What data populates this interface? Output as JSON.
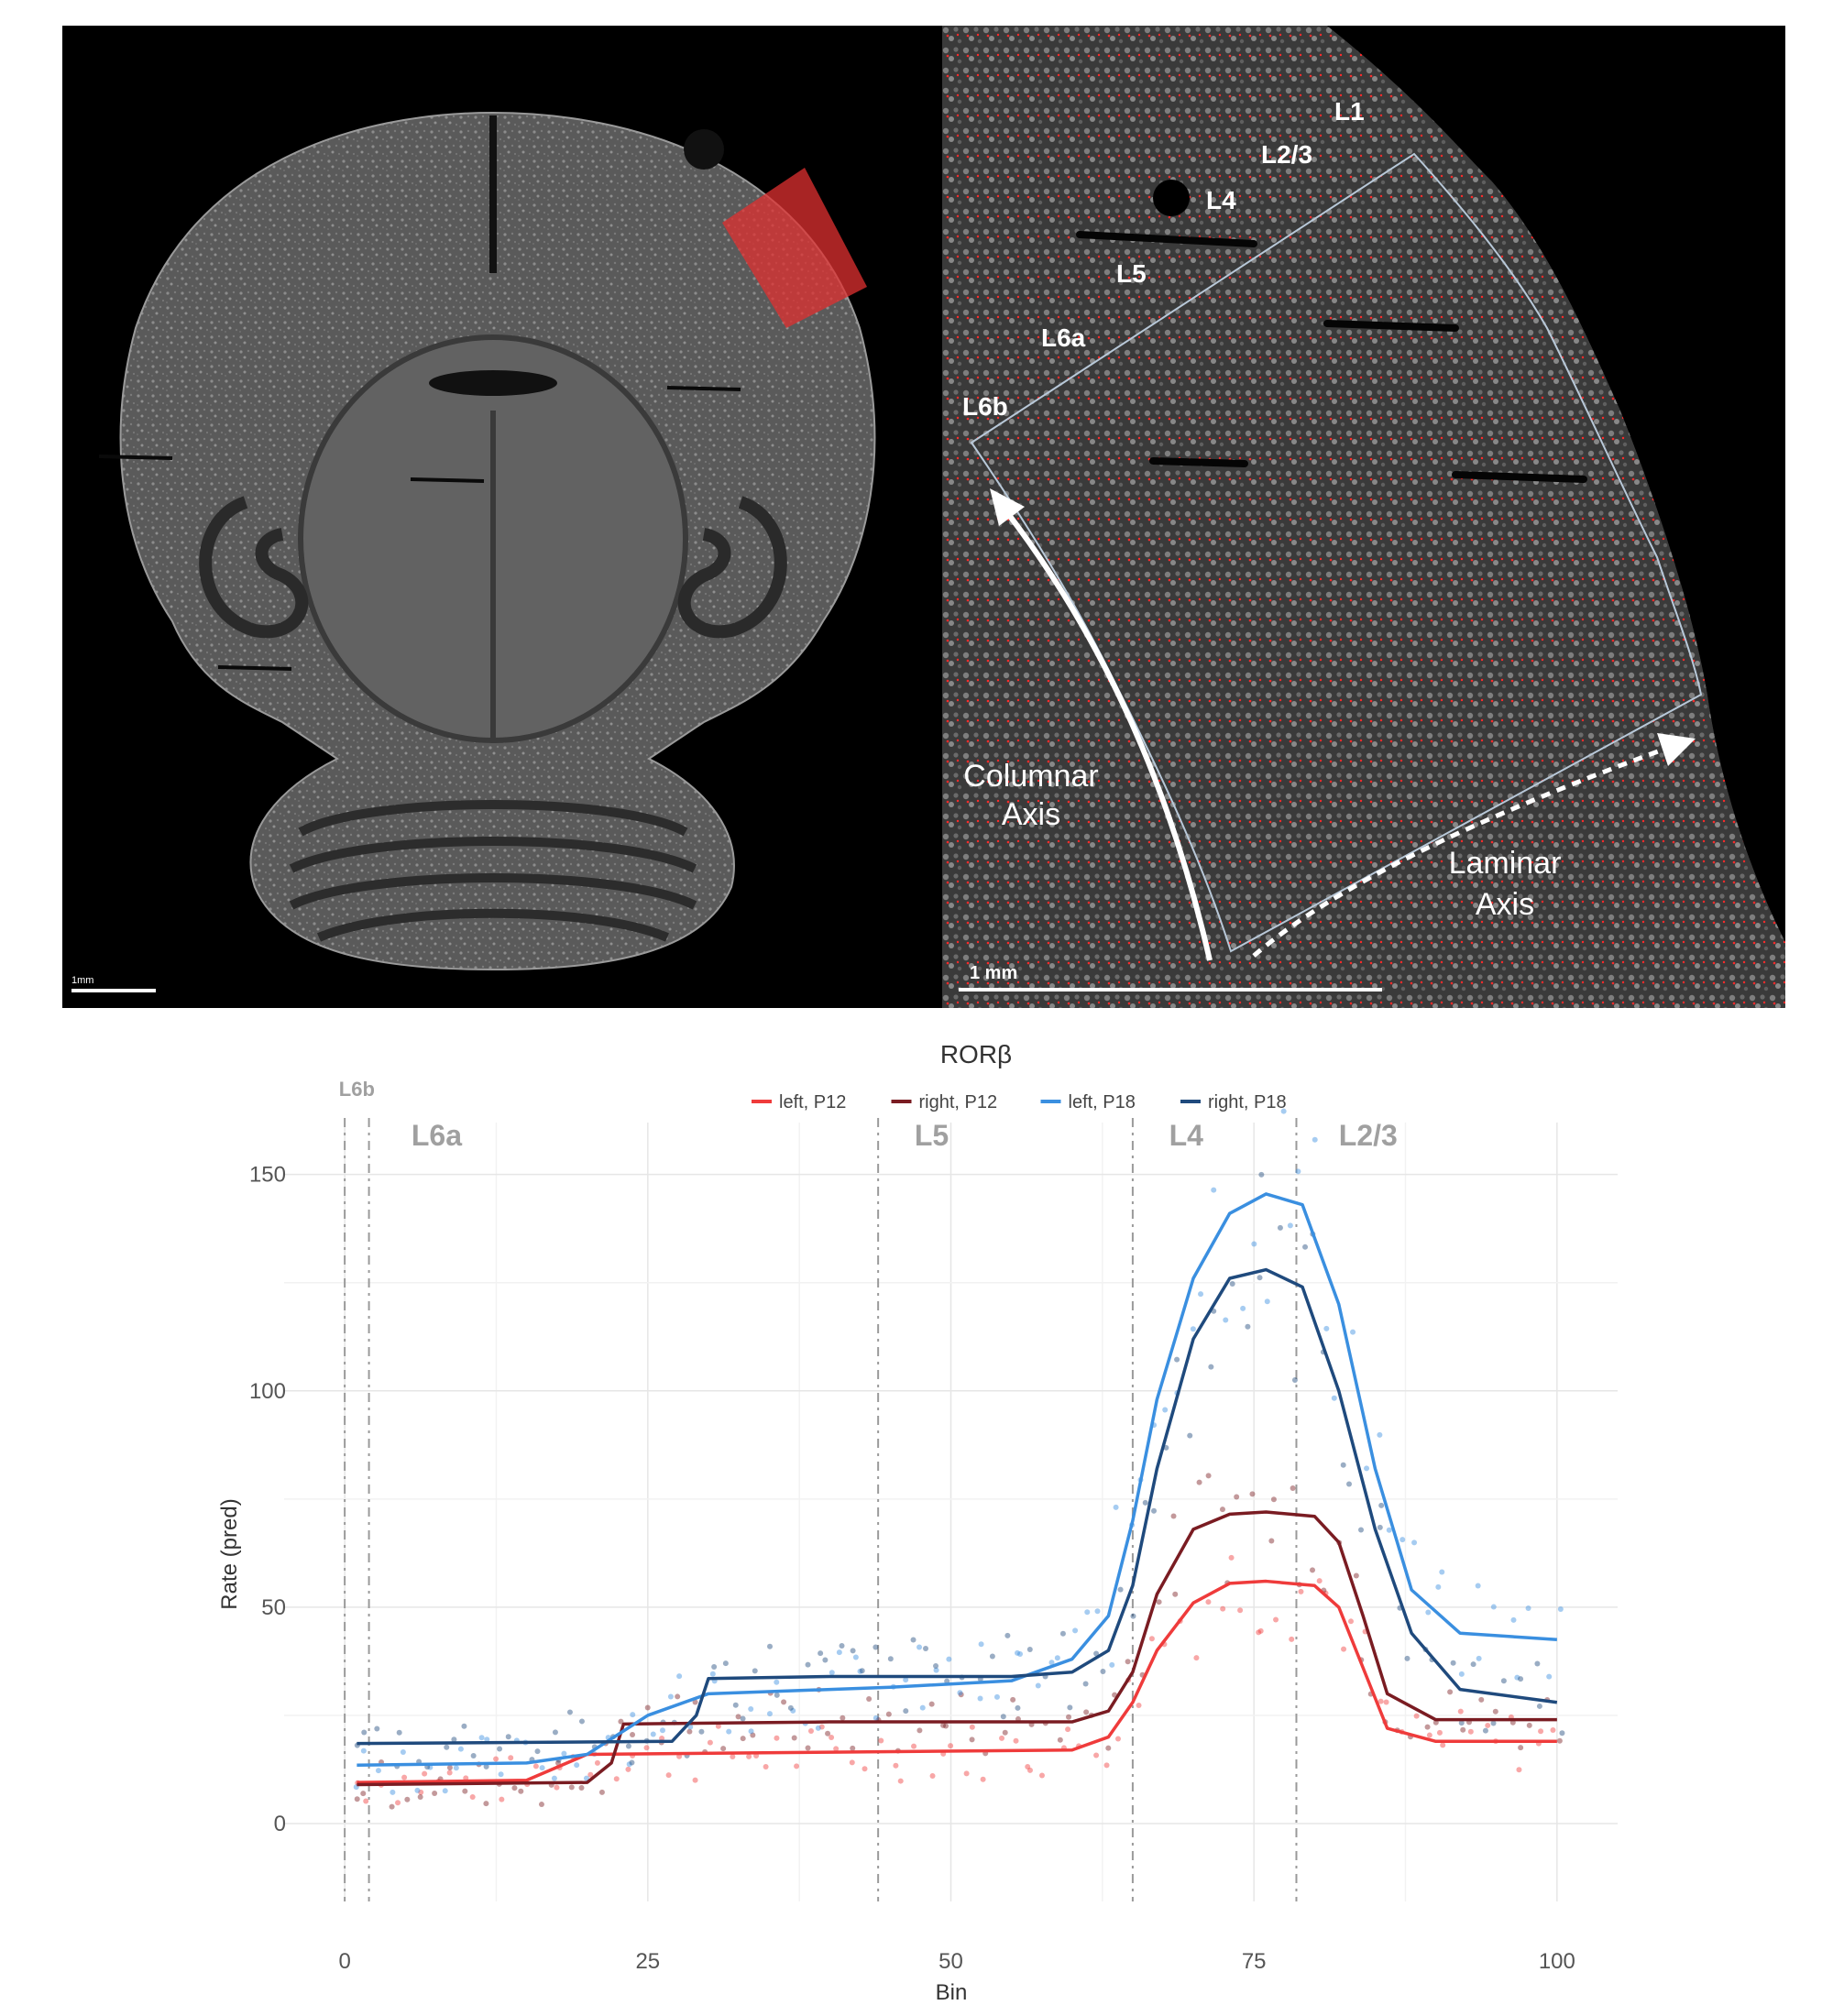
{
  "microscopy": {
    "left_scale_label": "1mm",
    "right_scale_label": "1 mm",
    "layer_labels": [
      "L1",
      "L2/3",
      "L4",
      "L5",
      "L6a",
      "L6b"
    ],
    "columnar_axis_label": [
      "Columnar",
      "Axis"
    ],
    "laminar_axis_label": [
      "Laminar",
      "Axis"
    ],
    "roi_color": "#e03030",
    "expression_dot_color": "#ff2a2a"
  },
  "chart_data": {
    "type": "line",
    "title": "RORβ",
    "xlabel": "Bin",
    "ylabel": "Rate (pred)",
    "xlim": [
      -5,
      105
    ],
    "ylim": [
      -18,
      162
    ],
    "x_ticks": [
      0,
      25,
      50,
      75,
      100
    ],
    "y_ticks": [
      0,
      50,
      100,
      150
    ],
    "grid": true,
    "legend_position": "top",
    "layer_boundaries": [
      {
        "x": 0,
        "label": "L6b",
        "label_x": 1
      },
      {
        "x": 2,
        "label": "L6a",
        "label_x": 5.5
      },
      {
        "x": 44,
        "label": "L5",
        "label_x": 47
      },
      {
        "x": 65,
        "label": "L4",
        "label_x": 68
      },
      {
        "x": 78.5,
        "label": "L2/3",
        "label_x": 82
      }
    ],
    "series": [
      {
        "name": "left, P12",
        "color": "#ef3b3b",
        "x": [
          1,
          15,
          20,
          40,
          60,
          63,
          65,
          67,
          70,
          73,
          76,
          80,
          82,
          84,
          86,
          90,
          100
        ],
        "y": [
          9.5,
          10,
          16,
          16.5,
          17,
          20,
          28,
          40,
          51,
          55.5,
          56,
          55,
          50,
          36,
          22,
          19,
          19
        ]
      },
      {
        "name": "right, P12",
        "color": "#7a1c22",
        "x": [
          1,
          20,
          22,
          23,
          40,
          60,
          63,
          65,
          67,
          70,
          73,
          76,
          80,
          82,
          84,
          86,
          90,
          100
        ],
        "y": [
          9,
          9.5,
          14,
          23,
          23.5,
          23.5,
          26,
          35,
          53,
          68,
          71.5,
          72,
          71,
          65,
          48,
          30,
          24,
          24
        ]
      },
      {
        "name": "left, P18",
        "color": "#3a8fe0",
        "x": [
          1,
          15,
          20,
          25,
          30,
          45,
          55,
          60,
          63,
          65,
          67,
          70,
          73,
          76,
          79,
          82,
          85,
          88,
          92,
          100
        ],
        "y": [
          13.5,
          14,
          16,
          25,
          30,
          31.5,
          33,
          38,
          48,
          70,
          98,
          126,
          141,
          145.5,
          143,
          120,
          82,
          54,
          44,
          42.5
        ]
      },
      {
        "name": "right, P18",
        "color": "#1f4a7d",
        "x": [
          1,
          27,
          29,
          30,
          40,
          55,
          60,
          63,
          65,
          67,
          70,
          73,
          76,
          79,
          82,
          85,
          88,
          92,
          100
        ],
        "y": [
          18.5,
          19,
          25,
          33.5,
          34,
          34,
          35,
          40,
          55,
          82,
          112,
          126,
          128,
          124,
          100,
          68,
          44,
          31,
          28
        ]
      }
    ]
  }
}
